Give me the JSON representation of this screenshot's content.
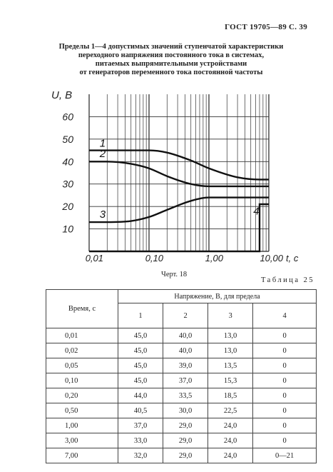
{
  "header": "ГОСТ 19705—89 С. 39",
  "title_lines": [
    "Пределы 1—4 допустимых значений ступенчатой характеристики",
    "переходного напряжения постоянного тока в системах,",
    "питаемых выпрямительными устройствами",
    "от генераторов переменного тока постоянной частоты"
  ],
  "chart_data": {
    "type": "line",
    "ylabel": "U, В",
    "xlabel": "t, с",
    "xscale": "log",
    "xlim": [
      0.01,
      10
    ],
    "ylim": [
      0,
      70
    ],
    "xticks": [
      "0,01",
      "0,10",
      "1,00",
      "10,00"
    ],
    "yticks": [
      "10",
      "20",
      "30",
      "40",
      "50",
      "60"
    ],
    "grid": true,
    "series": [
      {
        "name": "1",
        "x": [
          0.01,
          0.02,
          0.05,
          0.1,
          0.2,
          0.5,
          1.0,
          3.0,
          7.0,
          10.0
        ],
        "y": [
          45.0,
          45.0,
          45.0,
          45.0,
          44.0,
          40.5,
          37.0,
          33.0,
          32.0,
          32.0
        ]
      },
      {
        "name": "2",
        "x": [
          0.01,
          0.02,
          0.05,
          0.1,
          0.2,
          0.5,
          1.0,
          3.0,
          7.0,
          10.0
        ],
        "y": [
          40.0,
          40.0,
          39.0,
          37.0,
          33.5,
          30.0,
          29.0,
          29.0,
          29.0,
          29.0
        ]
      },
      {
        "name": "3",
        "x": [
          0.01,
          0.02,
          0.05,
          0.1,
          0.2,
          0.5,
          1.0,
          3.0,
          7.0,
          10.0
        ],
        "y": [
          13.0,
          13.0,
          13.5,
          15.3,
          18.5,
          22.5,
          24.0,
          24.0,
          24.0,
          24.0
        ]
      },
      {
        "name": "4",
        "x": [
          0.01,
          0.02,
          0.05,
          0.1,
          0.2,
          0.5,
          1.0,
          3.0,
          7.0,
          7.0,
          10.0
        ],
        "y": [
          0,
          0,
          0,
          0,
          0,
          0,
          0,
          0,
          0,
          21,
          21
        ]
      }
    ]
  },
  "caption": "Черт. 18",
  "table_name": "Таблица 25",
  "table": {
    "time_header": "Время, с",
    "group_header": "Напряжение, В, для предела",
    "col_headers": [
      "1",
      "2",
      "3",
      "4"
    ],
    "rows": [
      [
        "0,01",
        "45,0",
        "40,0",
        "13,0",
        "0"
      ],
      [
        "0,02",
        "45,0",
        "40,0",
        "13,0",
        "0"
      ],
      [
        "0,05",
        "45,0",
        "39,0",
        "13,5",
        "0"
      ],
      [
        "0,10",
        "45,0",
        "37,0",
        "15,3",
        "0"
      ],
      [
        "0,20",
        "44,0",
        "33,5",
        "18,5",
        "0"
      ],
      [
        "0,50",
        "40,5",
        "30,0",
        "22,5",
        "0"
      ],
      [
        "1,00",
        "37,0",
        "29,0",
        "24,0",
        "0"
      ],
      [
        "3,00",
        "33,0",
        "29,0",
        "24,0",
        "0"
      ],
      [
        "7,00",
        "32,0",
        "29,0",
        "24,0",
        "0—21"
      ]
    ]
  }
}
